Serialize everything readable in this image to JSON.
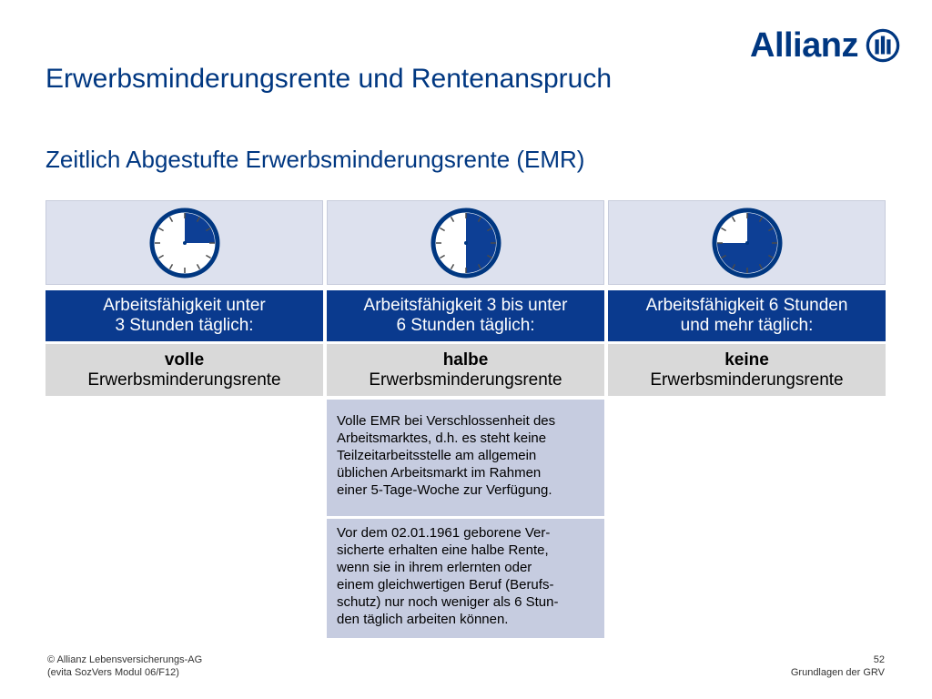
{
  "logo": {
    "text": "Allianz"
  },
  "title": "Erwerbsminderungsrente und Rentenanspruch",
  "subtitle": "Zeitlich Abgestufte Erwerbsminderungsrente (EMR)",
  "columns": [
    {
      "clock_fill_fraction": 0.25,
      "header_line1": "Arbeitsfähigkeit unter",
      "header_line2": "3 Stunden täglich:",
      "result_bold": "volle",
      "result_text": "Erwerbsminderungsrente"
    },
    {
      "clock_fill_fraction": 0.5,
      "header_line1": "Arbeitsfähigkeit 3 bis unter",
      "header_line2": "6 Stunden täglich:",
      "result_bold": "halbe",
      "result_text": "Erwerbsminderungsrente"
    },
    {
      "clock_fill_fraction": 0.75,
      "header_line1": "Arbeitsfähigkeit 6 Stunden",
      "header_line2": "und mehr täglich:",
      "result_bold": "keine",
      "result_text": "Erwerbsminderungsrente"
    }
  ],
  "notes": [
    {
      "lines": [
        "Volle EMR bei Verschlossenheit des",
        "Arbeitsmarktes, d.h. es steht keine",
        "Teilzeitarbeitsstelle am allgemein",
        "üblichen Arbeitsmarkt im Rahmen",
        "einer 5-Tage-Woche zur Verfügung."
      ]
    },
    {
      "lines": [
        "Vor dem 02.01.1961 geborene Ver-",
        "sicherte erhalten eine halbe Rente,",
        "wenn sie in ihrem erlernten oder",
        "einem gleichwertigen Beruf (Berufs-",
        "schutz) nur noch weniger als 6 Stun-",
        "den täglich arbeiten können."
      ]
    }
  ],
  "footer": {
    "copyright": "© Allianz Lebensversicherungs-AG",
    "source": "(evita SozVers Modul 06/F12)",
    "page_number": "52",
    "section": "Grundlagen der GRV"
  },
  "colors": {
    "brand": "#003781",
    "header_bg": "#0a3a8e",
    "clock_bg": "#dde1ee",
    "result_bg": "#d9d9d9",
    "note_bg": "#c6cce0"
  }
}
